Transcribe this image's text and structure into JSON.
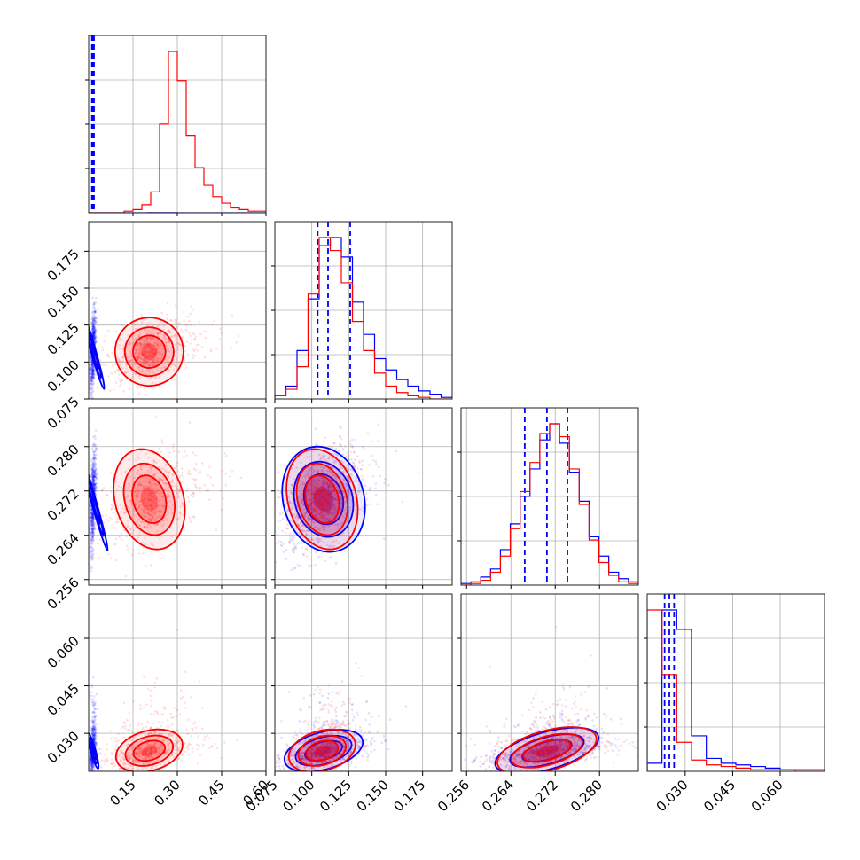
{
  "chart_data": {
    "type": "scatter",
    "subtype": "corner-plot",
    "grid": true,
    "parameters": [
      {
        "range": [
          0.0,
          0.6
        ],
        "ticks": [
          "0.15",
          "0.30",
          "0.45",
          "0.60"
        ],
        "tick_values": [
          0.15,
          0.3,
          0.45,
          0.6
        ]
      },
      {
        "range": [
          0.075,
          0.195
        ],
        "ticks": [
          "0.075",
          "0.100",
          "0.125",
          "0.150",
          "0.175"
        ],
        "tick_values": [
          0.075,
          0.1,
          0.125,
          0.15,
          0.175
        ]
      },
      {
        "range": [
          0.255,
          0.287
        ],
        "ticks": [
          "0.256",
          "0.264",
          "0.272",
          "0.280"
        ],
        "tick_values": [
          0.256,
          0.264,
          0.272,
          0.28
        ]
      },
      {
        "range": [
          0.018,
          0.074
        ],
        "ticks": [
          "0.030",
          "0.045",
          "0.060"
        ],
        "tick_values": [
          0.03,
          0.045,
          0.06
        ]
      }
    ],
    "series": [
      {
        "color": "#0000ff",
        "means": [
          0.015,
          0.108,
          0.2705,
          0.0245
        ],
        "stds": [
          0.004,
          0.013,
          0.0046,
          0.0028
        ],
        "quantiles": [
          [
            0.011,
            0.014,
            0.018
          ],
          [
            0.104,
            0.111,
            0.126
          ],
          [
            0.2665,
            0.2705,
            0.2742
          ],
          [
            0.0235,
            0.025,
            0.0265
          ]
        ],
        "histograms": [
          [
            0.02,
            0.03,
            0.06,
            0.0,
            0.0,
            0.0
          ],
          [
            2,
            8,
            30,
            62,
            95,
            100,
            88,
            60,
            40,
            25,
            18,
            12,
            8,
            5,
            3,
            1
          ],
          [
            1,
            2,
            5,
            10,
            22,
            38,
            55,
            72,
            90,
            100,
            88,
            70,
            52,
            30,
            18,
            8,
            4,
            2
          ],
          [
            5,
            100,
            88,
            22,
            8,
            5,
            4,
            3,
            2,
            1,
            1,
            1
          ]
        ]
      },
      {
        "color": "#ff0000",
        "means": [
          0.205,
          0.107,
          0.2705,
          0.0245
        ],
        "stds": [
          0.055,
          0.011,
          0.0044,
          0.003
        ],
        "quantiles": [],
        "histograms": [
          [
            0,
            0,
            0,
            0,
            1,
            2,
            5,
            13,
            55,
            100,
            82,
            48,
            28,
            17,
            10,
            6,
            3,
            2,
            1,
            1
          ],
          [
            2,
            6,
            20,
            65,
            100,
            92,
            72,
            48,
            30,
            16,
            8,
            4,
            2,
            1,
            0,
            0
          ],
          [
            0,
            1,
            3,
            8,
            18,
            35,
            58,
            76,
            94,
            100,
            92,
            72,
            50,
            28,
            14,
            6,
            2,
            1
          ],
          [
            100,
            60,
            18,
            7,
            4,
            3,
            2,
            1,
            1,
            1,
            0,
            0
          ]
        ]
      }
    ]
  }
}
